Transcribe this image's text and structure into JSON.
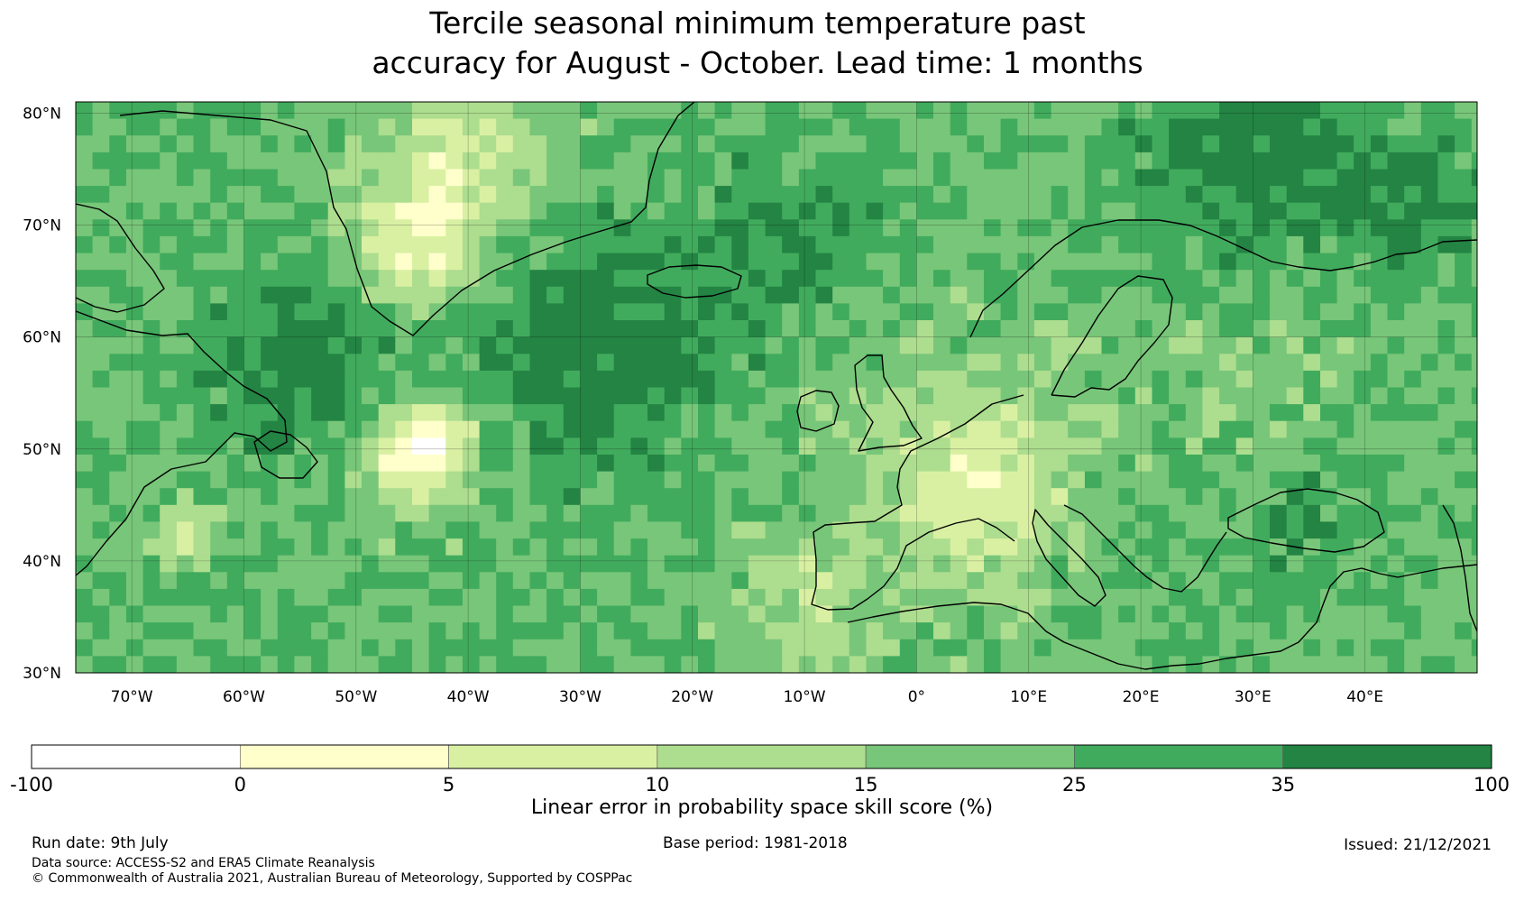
{
  "title": {
    "line1": "Tercile seasonal minimum temperature past",
    "line2": "accuracy for August - October. Lead time: 1 months"
  },
  "map": {
    "lat_labels": [
      "80°N",
      "70°N",
      "60°N",
      "50°N",
      "40°N",
      "30°N"
    ],
    "lon_labels": [
      "70°W",
      "60°W",
      "50°W",
      "40°W",
      "30°W",
      "20°W",
      "10°W",
      "0°",
      "10°E",
      "20°E",
      "30°E",
      "40°E"
    ],
    "lat_range": [
      30,
      81
    ],
    "lon_range": [
      -75,
      50
    ],
    "gridlines": true,
    "coastlines": true
  },
  "colorbar": {
    "label": "Linear error in probability space skill score (%)",
    "bins": [
      {
        "from": "-100",
        "to": "0",
        "color": "#ffffff"
      },
      {
        "from": "0",
        "to": "5",
        "color": "#ffffcc"
      },
      {
        "from": "5",
        "to": "10",
        "color": "#d9f0a3"
      },
      {
        "from": "10",
        "to": "15",
        "color": "#addd8e"
      },
      {
        "from": "15",
        "to": "25",
        "color": "#78c679"
      },
      {
        "from": "25",
        "to": "35",
        "color": "#41ab5d"
      },
      {
        "from": "35",
        "to": "100",
        "color": "#238443"
      }
    ],
    "tick_labels": [
      "-100",
      "0",
      "5",
      "10",
      "15",
      "25",
      "35",
      "100"
    ]
  },
  "footer": {
    "run_date": "Run date: 9th July",
    "base_period": "Base period: 1981-2018",
    "issued": "Issued: 21/12/2021",
    "data_source": "Data source: ACCESS-S2 and ERA5 Climate Reanalysis",
    "copyright": "© Commonwealth of Australia 2021, Australian Bureau of Meteorology, Supported by COSPPac"
  }
}
